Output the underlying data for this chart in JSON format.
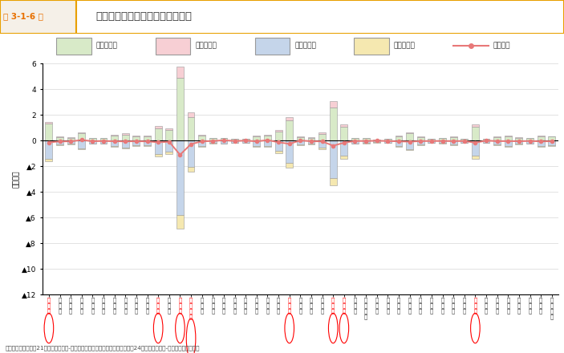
{
  "title": "規模別都道府県別開業・廃業件数",
  "title_prefix": "第 3-1-6 図",
  "ylabel": "（万者）",
  "source": "資料：総務省「平成21年経済センサス-基礎調査」、総務省・経済産業省「平成24年経済センサス-活動調査」再編加工",
  "ylim": [
    -12,
    6
  ],
  "yticks": [
    6,
    4,
    2,
    0,
    -2,
    -4,
    -6,
    -8,
    -10,
    -12
  ],
  "ytick_labels": [
    "6",
    "4",
    "2",
    "0",
    "▲2",
    "▲4",
    "▲6",
    "▲8",
    "▲10",
    "▲12"
  ],
  "bar_colors": {
    "small_open": "#d8eac8",
    "mid_open": "#f7cfd4",
    "small_close": "#c5d5ea",
    "mid_close": "#f5e8b0"
  },
  "bar_edge_color": "#999999",
  "line_color": "#e87878",
  "circled_indices": [
    0,
    10,
    12,
    13,
    22,
    26,
    27,
    39
  ],
  "prefecture_row1": [
    "北",
    "青",
    "岩",
    "宮",
    "秋",
    "山",
    "福",
    "茨",
    "栃",
    "群",
    "埼",
    "千",
    "東",
    "神",
    "新",
    "富",
    "石",
    "福",
    "山",
    "長",
    "岐",
    "静",
    "愛",
    "三",
    "滋",
    "京",
    "大",
    "兵",
    "奈",
    "和",
    "鳥",
    "島",
    "岡",
    "広",
    "山",
    "徳",
    "香",
    "愛",
    "高",
    "福",
    "佐",
    "長",
    "熊",
    "大",
    "宮",
    "鹿",
    "沖"
  ],
  "prefecture_row2": [
    "海",
    "森",
    "手",
    "城",
    "田",
    "形",
    "島",
    "城",
    "木",
    "馬",
    "玉",
    "葉",
    "京",
    "奈",
    "潟",
    "山",
    "川",
    "井",
    "梨",
    "野",
    "阜",
    "岡",
    "知",
    "重",
    "賀",
    "都",
    "阪",
    "庫",
    "良",
    "歌",
    "取",
    "根",
    "山",
    "島",
    "口",
    "島",
    "川",
    "媛",
    "知",
    "岡",
    "賀",
    "崎",
    "本",
    "分",
    "崎",
    "児",
    "縄"
  ],
  "prefecture_row3": [
    "道",
    "県",
    "県",
    "県",
    "県",
    "県",
    "県",
    "県",
    "県",
    "県",
    "県",
    "県",
    "都",
    "川",
    "県",
    "県",
    "県",
    "県",
    "県",
    "県",
    "県",
    "県",
    "県",
    "県",
    "県",
    "府",
    "府",
    "県",
    "県",
    "山",
    "県",
    "県",
    "県",
    "県",
    "県",
    "県",
    "県",
    "県",
    "県",
    "県",
    "県",
    "県",
    "県",
    "県",
    "県",
    "島",
    "県"
  ],
  "prefecture_row4": [
    "",
    "",
    "",
    "",
    "",
    "",
    "",
    "",
    "",
    "",
    "",
    "",
    "",
    "県",
    "",
    "",
    "",
    "",
    "",
    "",
    "",
    "",
    "",
    "",
    "",
    "",
    "",
    "",
    "",
    "県",
    "",
    "",
    "",
    "",
    "",
    "",
    "",
    "",
    "",
    "",
    "",
    "",
    "",
    "",
    "",
    "",
    "県",
    ""
  ],
  "small_open": [
    1.3,
    0.28,
    0.22,
    0.55,
    0.18,
    0.2,
    0.38,
    0.48,
    0.35,
    0.32,
    0.95,
    0.82,
    4.9,
    1.85,
    0.38,
    0.18,
    0.2,
    0.14,
    0.14,
    0.36,
    0.38,
    0.72,
    1.55,
    0.26,
    0.22,
    0.52,
    2.6,
    1.05,
    0.2,
    0.18,
    0.1,
    0.12,
    0.36,
    0.58,
    0.26,
    0.12,
    0.18,
    0.26,
    0.15,
    1.05,
    0.15,
    0.26,
    0.36,
    0.22,
    0.2,
    0.36,
    0.3
  ],
  "mid_open": [
    0.18,
    0.04,
    0.03,
    0.09,
    0.03,
    0.03,
    0.06,
    0.07,
    0.05,
    0.05,
    0.17,
    0.14,
    0.85,
    0.33,
    0.06,
    0.03,
    0.03,
    0.02,
    0.02,
    0.06,
    0.06,
    0.12,
    0.28,
    0.04,
    0.04,
    0.09,
    0.48,
    0.19,
    0.03,
    0.03,
    0.01,
    0.02,
    0.06,
    0.09,
    0.04,
    0.02,
    0.03,
    0.04,
    0.02,
    0.19,
    0.02,
    0.04,
    0.06,
    0.04,
    0.03,
    0.06,
    0.05
  ],
  "small_close": [
    -1.4,
    -0.32,
    -0.26,
    -0.58,
    -0.22,
    -0.22,
    -0.42,
    -0.52,
    -0.38,
    -0.36,
    -1.05,
    -0.88,
    -5.8,
    -2.05,
    -0.42,
    -0.2,
    -0.22,
    -0.16,
    -0.16,
    -0.4,
    -0.42,
    -0.82,
    -1.75,
    -0.29,
    -0.26,
    -0.57,
    -2.95,
    -1.18,
    -0.22,
    -0.2,
    -0.12,
    -0.14,
    -0.41,
    -0.64,
    -0.29,
    -0.14,
    -0.2,
    -0.29,
    -0.17,
    -1.18,
    -0.17,
    -0.29,
    -0.41,
    -0.26,
    -0.22,
    -0.41,
    -0.34
  ],
  "mid_close": [
    -0.22,
    -0.06,
    -0.05,
    -0.11,
    -0.04,
    -0.04,
    -0.07,
    -0.09,
    -0.07,
    -0.07,
    -0.2,
    -0.17,
    -1.05,
    -0.4,
    -0.08,
    -0.04,
    -0.04,
    -0.03,
    -0.03,
    -0.08,
    -0.08,
    -0.15,
    -0.33,
    -0.05,
    -0.05,
    -0.1,
    -0.53,
    -0.22,
    -0.04,
    -0.04,
    -0.02,
    -0.03,
    -0.07,
    -0.11,
    -0.05,
    -0.03,
    -0.04,
    -0.05,
    -0.03,
    -0.22,
    -0.03,
    -0.05,
    -0.07,
    -0.05,
    -0.04,
    -0.07,
    -0.06
  ],
  "net_change": [
    -0.14,
    -0.06,
    -0.06,
    0.05,
    -0.05,
    -0.03,
    -0.05,
    -0.06,
    -0.05,
    -0.06,
    -0.13,
    -0.09,
    -1.1,
    -0.27,
    -0.06,
    -0.03,
    0.03,
    -0.03,
    0.0,
    -0.06,
    0.04,
    -0.13,
    -0.25,
    0.01,
    -0.05,
    -0.06,
    -0.4,
    -0.16,
    -0.03,
    -0.03,
    -0.01,
    -0.03,
    -0.06,
    -0.08,
    -0.04,
    -0.03,
    -0.03,
    -0.04,
    -0.03,
    -0.16,
    0.0,
    -0.04,
    -0.04,
    -0.05,
    -0.03,
    -0.06,
    -0.05
  ]
}
